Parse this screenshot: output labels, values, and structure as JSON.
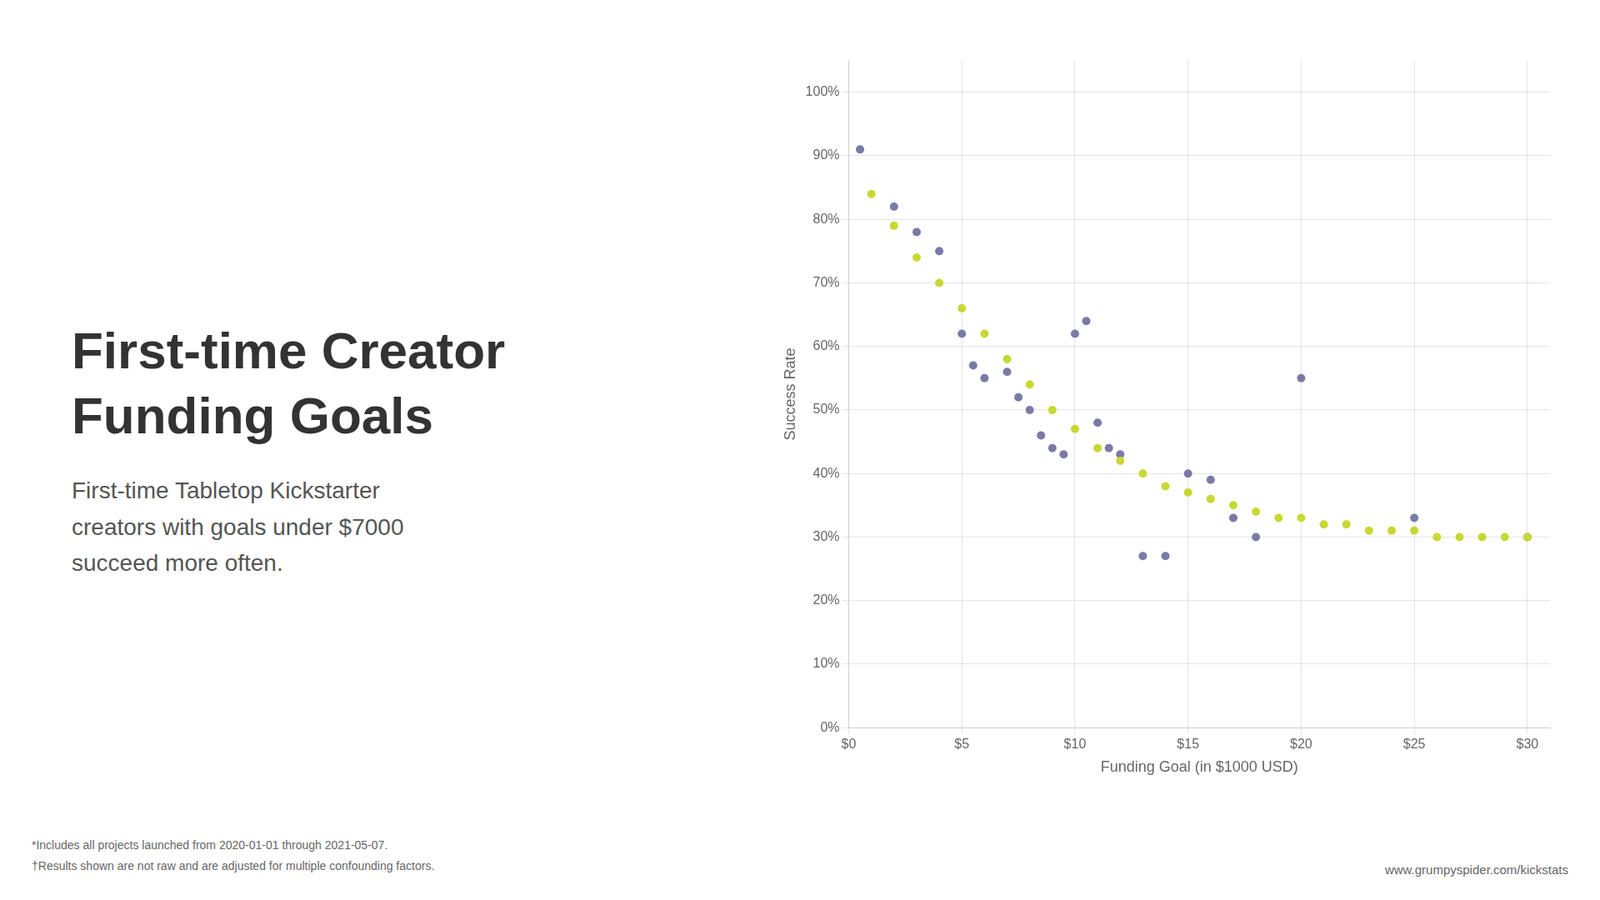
{
  "chart_data": {
    "type": "scatter",
    "title": [
      "First-time Creator",
      "Funding Goals"
    ],
    "subtitle": "First-time Tabletop Kickstarter\ncreators with goals under $7000\nsucceed more often.",
    "x_label": "Funding Goal (in $1000 USD)",
    "y_label": "Success Rate",
    "footnotes": [
      "*Includes all projects launched from 2020-01-01  through 2021-05-07.",
      "†Results shown are not raw and are adjusted for multiple confounding factors."
    ],
    "watermark": "www.grumpyspider.com/kickstats",
    "series": [
      {
        "color": "#7a7aa8",
        "marker": "circle",
        "x": [
          0.5,
          2.0,
          3.0,
          4.0,
          5.0,
          5.5,
          6.0,
          7.0,
          7.5,
          8.0,
          8.5,
          9.0,
          9.5,
          10.0,
          10.5,
          11.0,
          11.5,
          12.0,
          13.0,
          14.0,
          15.0,
          16.0,
          17.0,
          18.0,
          20.0,
          25.0,
          30.0
        ],
        "values": [
          91,
          82,
          78,
          75,
          62,
          57,
          55,
          56,
          52,
          50,
          46,
          44,
          43,
          62,
          64,
          48,
          44,
          43,
          27,
          27,
          40,
          39,
          33,
          30,
          55,
          33,
          30
        ]
      },
      {
        "color": "#c8d832",
        "marker": "circle",
        "x": [
          1.0,
          2.0,
          3.0,
          4.0,
          5.0,
          6.0,
          7.0,
          8.0,
          9.0,
          10.0,
          11.0,
          12.0,
          13.0,
          14.0,
          15.0,
          16.0,
          17.0,
          18.0,
          19.0,
          20.0,
          21.0,
          22.0,
          23.0,
          24.0,
          25.0,
          26.0,
          27.0,
          28.0,
          29.0,
          30.0
        ],
        "values": [
          84,
          79,
          74,
          70,
          66,
          62,
          58,
          54,
          50,
          47,
          44,
          42,
          40,
          38,
          37,
          36,
          35,
          34,
          33,
          33,
          32,
          32,
          31,
          31,
          31,
          30,
          30,
          30,
          30,
          30
        ]
      }
    ],
    "xlim": [
      0,
      31
    ],
    "xticks": [
      {
        "value": 0,
        "label": "$0"
      },
      {
        "value": 5,
        "label": "$5"
      },
      {
        "value": 10,
        "label": "$10"
      },
      {
        "value": 15,
        "label": "$15"
      },
      {
        "value": 20,
        "label": "$20"
      },
      {
        "value": 25,
        "label": "$25"
      },
      {
        "value": 30,
        "label": "$30"
      }
    ],
    "ylim": [
      0,
      105
    ],
    "yticks": [
      {
        "value": 0,
        "label": "0%"
      },
      {
        "value": 10,
        "label": "10%"
      },
      {
        "value": 20,
        "label": "20%"
      },
      {
        "value": 30,
        "label": "30%"
      },
      {
        "value": 40,
        "label": "40%"
      },
      {
        "value": 50,
        "label": "50%"
      },
      {
        "value": 60,
        "label": "60%"
      },
      {
        "value": 70,
        "label": "70%"
      },
      {
        "value": 80,
        "label": "80%"
      },
      {
        "value": 90,
        "label": "90%"
      },
      {
        "value": 100,
        "label": "100%"
      }
    ],
    "grid": true
  }
}
